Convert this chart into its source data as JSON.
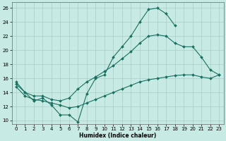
{
  "xlabel": "Humidex (Indice chaleur)",
  "xlim": [
    -0.5,
    23.5
  ],
  "ylim": [
    9.5,
    26.8
  ],
  "xticks": [
    0,
    1,
    2,
    3,
    4,
    5,
    6,
    7,
    8,
    9,
    10,
    11,
    12,
    13,
    14,
    15,
    16,
    17,
    18,
    19,
    20,
    21,
    22,
    23
  ],
  "yticks": [
    10,
    12,
    14,
    16,
    18,
    20,
    22,
    24,
    26
  ],
  "bg_color": "#c8eae4",
  "grid_color": "#a8ccc8",
  "line_color": "#1a7060",
  "series": [
    {
      "x": [
        0,
        1,
        2,
        3,
        4,
        5,
        6,
        7,
        8,
        9,
        10,
        11,
        12,
        13,
        14,
        15,
        16,
        17,
        18
      ],
      "y": [
        15.5,
        14.0,
        12.8,
        13.2,
        12.2,
        10.8,
        10.8,
        9.8,
        13.8,
        16.0,
        16.5,
        19.0,
        20.5,
        22.0,
        24.0,
        25.8,
        26.0,
        25.2,
        23.5
      ]
    },
    {
      "x": [
        0,
        1,
        2,
        3,
        4,
        5,
        6,
        7,
        8,
        9,
        10,
        11,
        12,
        13,
        14,
        15,
        16,
        17,
        18,
        19,
        20,
        21,
        22,
        23
      ],
      "y": [
        15.2,
        14.0,
        13.5,
        13.5,
        13.0,
        12.8,
        13.2,
        14.5,
        15.5,
        16.2,
        17.0,
        17.8,
        18.8,
        19.8,
        21.0,
        22.0,
        22.2,
        22.0,
        21.0,
        20.5,
        20.5,
        19.0,
        17.2,
        16.5
      ]
    },
    {
      "x": [
        0,
        1,
        2,
        3,
        4,
        5,
        6,
        7,
        8,
        9,
        10,
        11,
        12,
        13,
        14,
        15,
        16,
        17,
        18,
        19,
        20,
        21,
        22,
        23
      ],
      "y": [
        14.8,
        13.5,
        13.0,
        12.8,
        12.5,
        12.2,
        11.8,
        12.0,
        12.5,
        13.0,
        13.5,
        14.0,
        14.5,
        15.0,
        15.5,
        15.8,
        16.0,
        16.2,
        16.4,
        16.5,
        16.5,
        16.2,
        16.0,
        16.5
      ]
    }
  ]
}
